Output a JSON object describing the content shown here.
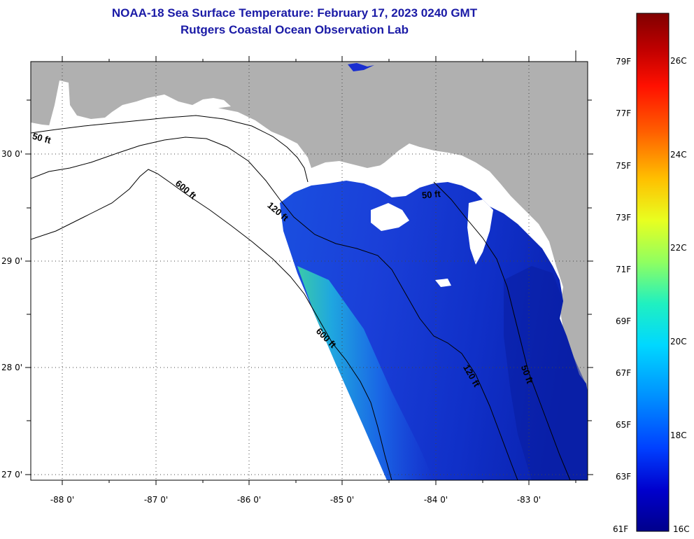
{
  "title": {
    "line1": "NOAA-18 Sea Surface Temperature:  February 17, 2023 0240 GMT",
    "line2": "Rutgers Coastal Ocean Observation Lab"
  },
  "map": {
    "lon_ticks": [
      "-88 0'",
      "-87 0'",
      "-86 0'",
      "-85 0'",
      "-84 0'",
      "-83 0'"
    ],
    "lat_ticks": [
      "30 0'",
      "29 0'",
      "28 0'",
      "27 0'"
    ],
    "contour_labels": [
      "50 ft",
      "600 ft",
      "120 ft",
      "50 ft",
      "600 ft",
      "120 ft",
      "50 ft"
    ],
    "colors": {
      "land": "#b0b0b0",
      "cloud": "#ffffff",
      "frame": "#000000"
    }
  },
  "colorbar": {
    "f_labels": [
      "79F",
      "77F",
      "75F",
      "73F",
      "71F",
      "69F",
      "67F",
      "65F",
      "63F",
      "61F"
    ],
    "c_labels": [
      "26C",
      "24C",
      "22C",
      "20C",
      "18C",
      "16C"
    ],
    "gradient": [
      "#00008b",
      "#0000cd",
      "#0040ff",
      "#0090ff",
      "#00d8ff",
      "#20f0c0",
      "#90ff60",
      "#e8ff20",
      "#ffc000",
      "#ff6000",
      "#ff1000",
      "#c00000",
      "#800000"
    ]
  }
}
